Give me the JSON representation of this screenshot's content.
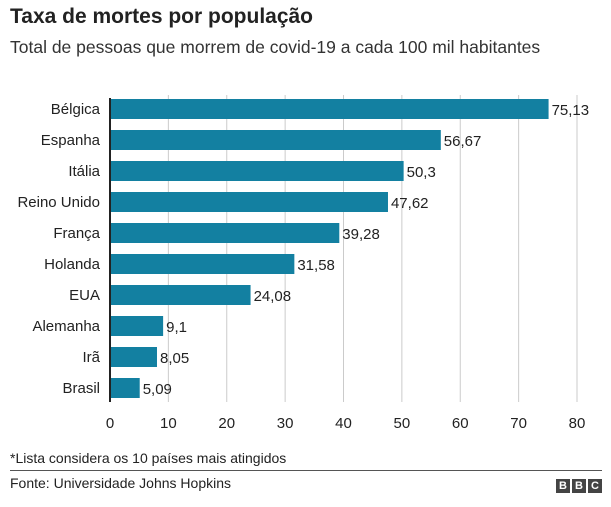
{
  "header": {
    "title": "Taxa de mortes por população",
    "subtitle": "Total de pessoas que morrem de covid-19 a cada 100 mil habitantes"
  },
  "footer": {
    "note": "*Lista considera os 10 países mais atingidos",
    "source": "Fonte: Universidade Johns Hopkins",
    "logo_letters": [
      "B",
      "B",
      "C"
    ]
  },
  "chart_data": {
    "type": "bar",
    "orientation": "horizontal",
    "title": "Taxa de mortes por população",
    "subtitle": "Total de pessoas que morrem de covid-19 a cada 100 mil habitantes",
    "categories": [
      "Bélgica",
      "Espanha",
      "Itália",
      "Reino Unido",
      "França",
      "Holanda",
      "EUA",
      "Alemanha",
      "Irã",
      "Brasil"
    ],
    "values": [
      75.13,
      56.67,
      50.3,
      47.62,
      39.28,
      31.58,
      24.08,
      9.1,
      8.05,
      5.09
    ],
    "value_labels": [
      "75,13",
      "56,67",
      "50,3",
      "47,62",
      "39,28",
      "31,58",
      "24,08",
      "9,1",
      "8,05",
      "5,09"
    ],
    "xlim": [
      0,
      80
    ],
    "xticks": [
      0,
      10,
      20,
      30,
      40,
      50,
      60,
      70,
      80
    ],
    "grid": "vertical",
    "bar_color": "#1380a1",
    "grid_color": "#cbcbcb",
    "axis_color": "#222222"
  }
}
